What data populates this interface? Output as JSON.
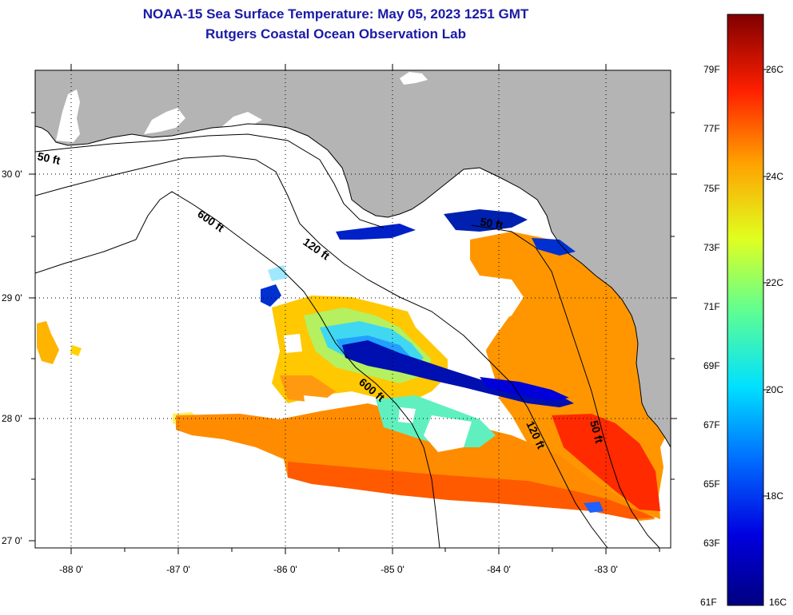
{
  "title": "NOAA-15 Sea Surface Temperature:  May 05, 2023 1251 GMT",
  "subtitle": "Rutgers Coastal Ocean Observation Lab",
  "map": {
    "lat_labels": [
      "30 0'",
      "29 0'",
      "28 0'",
      "27 0'"
    ],
    "lon_labels": [
      "-88 0'",
      "-87 0'",
      "-86 0'",
      "-85 0'",
      "-84 0'",
      "-83 0'"
    ],
    "isobath_labels": [
      "50 ft",
      "600 ft",
      "120 ft",
      "50 ft",
      "600 ft",
      "120 ft",
      "50 ft"
    ]
  },
  "colorbar": {
    "f_labels": [
      "79F",
      "77F",
      "75F",
      "73F",
      "71F",
      "69F",
      "67F",
      "65F",
      "63F",
      "61F"
    ],
    "c_labels": [
      "26C",
      "24C",
      "22C",
      "20C",
      "18C",
      "16C"
    ]
  },
  "colors": {
    "title": "#1a1aa8",
    "land": "#b4b4b4",
    "cloud": "#ffffff"
  }
}
